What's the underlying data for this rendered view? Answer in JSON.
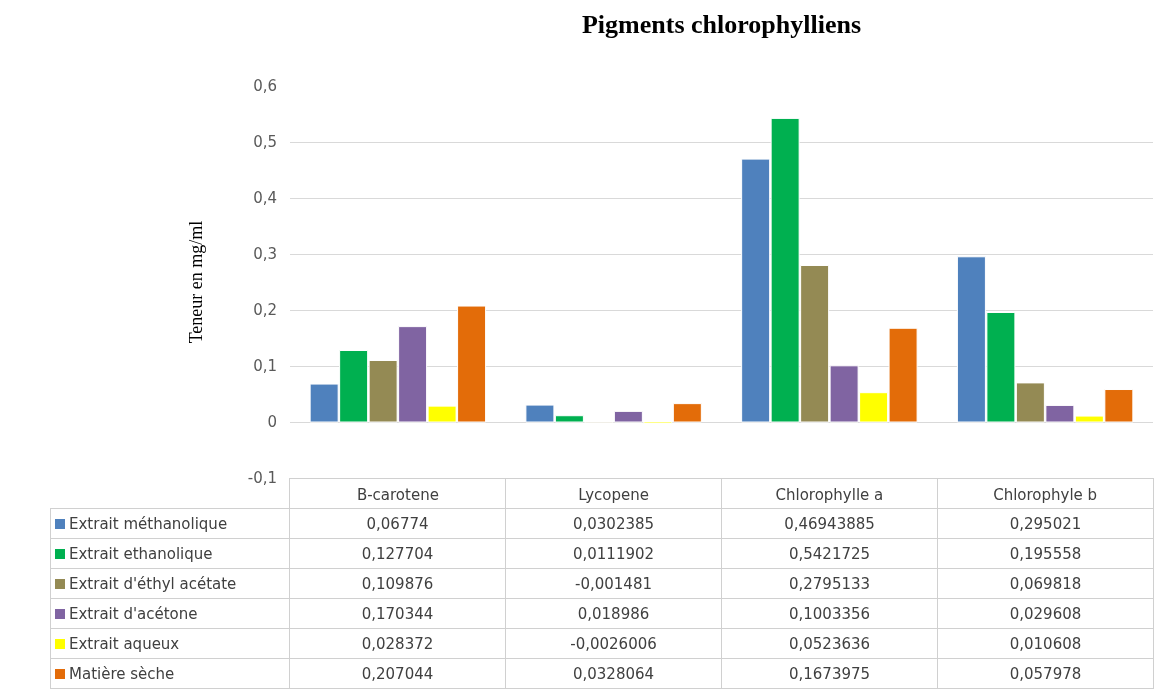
{
  "chart_data": {
    "type": "bar",
    "title": "Pigments chlorophylliens",
    "ylabel": "Teneur en mg/ml",
    "categories": [
      "B-carotene",
      "Lycopene",
      "Chlorophylle a",
      "Chlorophyle b"
    ],
    "series": [
      {
        "name": "Extrait méthanolique",
        "color": "#4f81bd",
        "values": [
          0.06774,
          0.0302385,
          0.46943885,
          0.295021
        ],
        "value_labels": [
          "0,06774",
          "0,0302385",
          "0,46943885",
          "0,295021"
        ]
      },
      {
        "name": "Extrait ethanolique",
        "color": "#00b050",
        "values": [
          0.127704,
          0.0111902,
          0.5421725,
          0.195558
        ],
        "value_labels": [
          "0,127704",
          "0,0111902",
          "0,5421725",
          "0,195558"
        ]
      },
      {
        "name": "Extrait d'éthyl acétate",
        "color": "#948a54",
        "values": [
          0.109876,
          -0.001481,
          0.2795133,
          0.069818
        ],
        "value_labels": [
          "0,109876",
          "-0,001481",
          "0,2795133",
          "0,069818"
        ]
      },
      {
        "name": "Extrait d'acétone",
        "color": "#8064a2",
        "values": [
          0.170344,
          0.018986,
          0.1003356,
          0.029608
        ],
        "value_labels": [
          "0,170344",
          "0,018986",
          "0,1003356",
          "0,029608"
        ]
      },
      {
        "name": "Extrait aqueux",
        "color": "#ffff00",
        "values": [
          0.028372,
          -0.0026006,
          0.0523636,
          0.010608
        ],
        "value_labels": [
          "0,028372",
          "-0,0026006",
          "0,0523636",
          "0,010608"
        ]
      },
      {
        "name": "Matière sèche",
        "color": "#e36c09",
        "values": [
          0.207044,
          0.0328064,
          0.1673975,
          0.057978
        ],
        "value_labels": [
          "0,207044",
          "0,0328064",
          "0,1673975",
          "0,057978"
        ]
      }
    ],
    "ylim": [
      -0.1,
      0.6
    ],
    "yticks": [
      {
        "value": -0.1,
        "label": "-0,1"
      },
      {
        "value": 0,
        "label": "0"
      },
      {
        "value": 0.1,
        "label": "0,1"
      },
      {
        "value": 0.2,
        "label": "0,2"
      },
      {
        "value": 0.3,
        "label": "0,3"
      },
      {
        "value": 0.4,
        "label": "0,4"
      },
      {
        "value": 0.5,
        "label": "0,5"
      },
      {
        "value": 0.6,
        "label": "0,6"
      }
    ],
    "grid": "y",
    "legend": "bottom left"
  }
}
